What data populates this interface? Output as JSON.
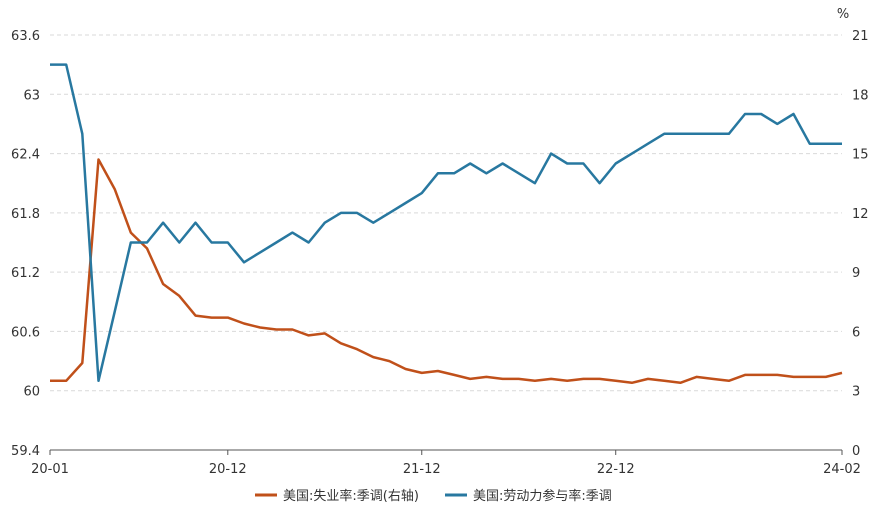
{
  "chart_data": {
    "type": "line",
    "unit_right": "%",
    "x_ticks": [
      "20-01",
      "20-12",
      "21-12",
      "22-12",
      "24-02"
    ],
    "y_left": {
      "min": 59.4,
      "max": 63.6,
      "ticks": [
        "59.4",
        "60",
        "60.6",
        "61.2",
        "61.8",
        "62.4",
        "63",
        "63.6"
      ]
    },
    "y_right": {
      "min": 0,
      "max": 21,
      "ticks": [
        "0",
        "3",
        "6",
        "9",
        "12",
        "15",
        "18",
        "21"
      ]
    },
    "grid": "horizontal dashed",
    "legend_position": "bottom",
    "x": [
      "20-01",
      "20-02",
      "20-03",
      "20-04",
      "20-05",
      "20-06",
      "20-07",
      "20-08",
      "20-09",
      "20-10",
      "20-11",
      "20-12",
      "21-01",
      "21-02",
      "21-03",
      "21-04",
      "21-05",
      "21-06",
      "21-07",
      "21-08",
      "21-09",
      "21-10",
      "21-11",
      "21-12",
      "22-01",
      "22-02",
      "22-03",
      "22-04",
      "22-05",
      "22-06",
      "22-07",
      "22-08",
      "22-09",
      "22-10",
      "22-11",
      "22-12",
      "23-01",
      "23-02",
      "23-03",
      "23-04",
      "23-05",
      "23-06",
      "23-07",
      "23-08",
      "23-09",
      "23-10",
      "23-11",
      "23-12",
      "24-01",
      "24-02"
    ],
    "series": [
      {
        "name": "美国:失业率:季调(右轴)",
        "axis": "right",
        "color": "#c0501a",
        "values": [
          3.5,
          3.5,
          4.4,
          14.7,
          13.2,
          11.0,
          10.2,
          8.4,
          7.8,
          6.8,
          6.7,
          6.7,
          6.4,
          6.2,
          6.1,
          6.1,
          5.8,
          5.9,
          5.4,
          5.1,
          4.7,
          4.5,
          4.1,
          3.9,
          4.0,
          3.8,
          3.6,
          3.7,
          3.6,
          3.6,
          3.5,
          3.6,
          3.5,
          3.6,
          3.6,
          3.5,
          3.4,
          3.6,
          3.5,
          3.4,
          3.7,
          3.6,
          3.5,
          3.8,
          3.8,
          3.8,
          3.7,
          3.7,
          3.7,
          3.9
        ]
      },
      {
        "name": "美国:劳动力参与率:季调",
        "axis": "left",
        "color": "#2878a0",
        "values": [
          63.3,
          63.3,
          62.6,
          60.1,
          60.8,
          61.5,
          61.5,
          61.7,
          61.5,
          61.7,
          61.5,
          61.5,
          61.3,
          61.4,
          61.5,
          61.6,
          61.5,
          61.7,
          61.8,
          61.8,
          61.7,
          61.8,
          61.9,
          62.0,
          62.2,
          62.2,
          62.3,
          62.2,
          62.3,
          62.2,
          62.1,
          62.4,
          62.3,
          62.3,
          62.1,
          62.3,
          62.4,
          62.5,
          62.6,
          62.6,
          62.6,
          62.6,
          62.6,
          62.8,
          62.8,
          62.7,
          62.8,
          62.5,
          62.5,
          62.5
        ]
      }
    ]
  }
}
